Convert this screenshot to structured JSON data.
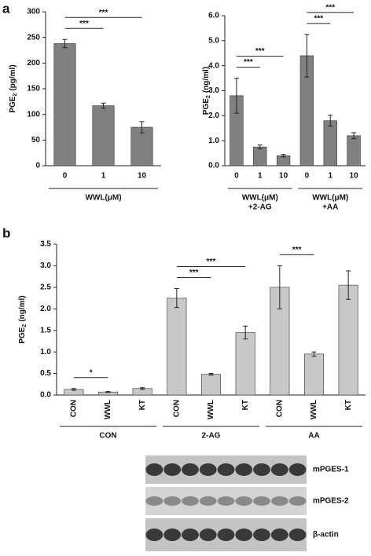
{
  "panel_labels": [
    "a",
    "b"
  ],
  "chart_data": [
    {
      "type": "bar",
      "color": "#808080",
      "y_label_parts": [
        "PGE",
        "2",
        "(pg/ml)"
      ],
      "categories": [
        "0",
        "1",
        "10"
      ],
      "values": [
        238,
        117,
        75
      ],
      "errors": [
        8,
        5,
        11
      ],
      "ylim": [
        0,
        300
      ],
      "yticks": [
        0,
        50,
        100,
        150,
        200,
        250,
        300
      ],
      "groups": [
        {
          "lines": [
            "WWL(μM)"
          ]
        }
      ],
      "significance": [
        {
          "pair": [
            0,
            1
          ],
          "label": "***"
        },
        {
          "pair": [
            0,
            2
          ],
          "label": "***"
        }
      ]
    },
    {
      "type": "bar",
      "color": "#808080",
      "y_label_parts": [
        "PGE",
        "2",
        "(ng/ml)"
      ],
      "categories": [
        "0",
        "1",
        "10",
        "0",
        "1",
        "10"
      ],
      "values": [
        2.8,
        0.75,
        0.4,
        4.4,
        1.8,
        1.2
      ],
      "errors": [
        0.7,
        0.08,
        0.05,
        0.85,
        0.22,
        0.12
      ],
      "ylim": [
        0,
        6
      ],
      "yticks": [
        {
          "value": 0,
          "label": "0.0"
        },
        {
          "value": 1,
          "label": "1.0"
        },
        {
          "value": 2,
          "label": "2.0"
        },
        {
          "value": 3,
          "label": "3.0"
        },
        {
          "value": 4,
          "label": "4.0"
        },
        {
          "value": 5,
          "label": "5.0"
        },
        {
          "value": 6,
          "label": "6.0"
        }
      ],
      "groups": [
        {
          "lines": [
            "WWL(μM)",
            "+2-AG"
          ]
        },
        {
          "lines": [
            "WWL(μM)",
            "+AA"
          ]
        }
      ],
      "significance": [
        {
          "pair": [
            0,
            1
          ],
          "label": "***"
        },
        {
          "pair": [
            0,
            2
          ],
          "label": "***"
        },
        {
          "pair": [
            3,
            4
          ],
          "label": "***"
        },
        {
          "pair": [
            3,
            5
          ],
          "label": "***"
        }
      ]
    },
    {
      "type": "bar",
      "color": "#c8c8c8",
      "rotate_labels": true,
      "y_label_parts": [
        "PGE",
        "2",
        "(ng/ml)"
      ],
      "categories": [
        "CON",
        "WWL",
        "KT",
        "CON",
        "WWL",
        "KT",
        "CON",
        "WWL",
        "KT"
      ],
      "values": [
        0.13,
        0.07,
        0.15,
        2.25,
        0.48,
        1.45,
        2.5,
        0.95,
        2.55
      ],
      "errors": [
        0.02,
        0.01,
        0.02,
        0.22,
        0.02,
        0.15,
        0.5,
        0.05,
        0.33
      ],
      "ylim": [
        0,
        3.5
      ],
      "yticks": [
        {
          "value": 0,
          "label": "0.0"
        },
        {
          "value": 0.5,
          "label": "0.5"
        },
        {
          "value": 1,
          "label": "1.0"
        },
        {
          "value": 1.5,
          "label": "1.5"
        },
        {
          "value": 2,
          "label": "2.0"
        },
        {
          "value": 2.5,
          "label": "2.5"
        },
        {
          "value": 3,
          "label": "3.0"
        },
        {
          "value": 3.5,
          "label": "3.5"
        }
      ],
      "groups": [
        {
          "lines": [
            "CON"
          ]
        },
        {
          "lines": [
            "2-AG"
          ]
        },
        {
          "lines": [
            "AA"
          ]
        }
      ],
      "significance": [
        {
          "pair": [
            0,
            1
          ],
          "label": "*"
        },
        {
          "pair": [
            3,
            4
          ],
          "label": "***"
        },
        {
          "pair": [
            3,
            5
          ],
          "label": "***"
        },
        {
          "pair": [
            6,
            7
          ],
          "label": "***"
        }
      ]
    }
  ],
  "blot": {
    "rows": [
      "mPGES-1",
      "mPGES-2",
      "β-actin"
    ]
  }
}
